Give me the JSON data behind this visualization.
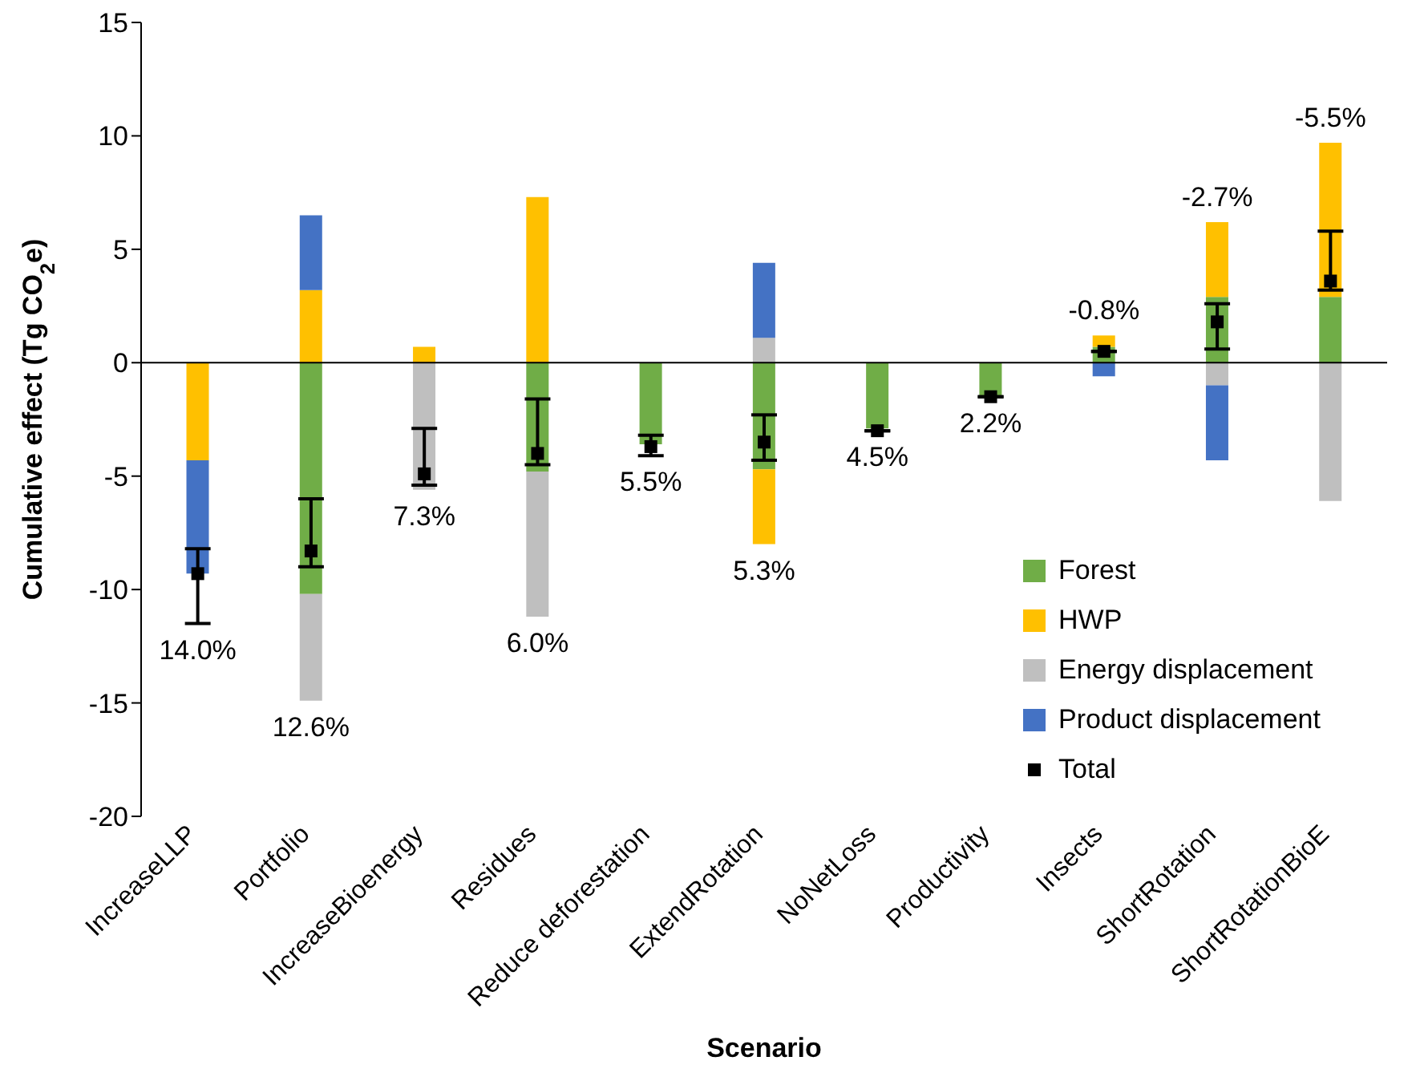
{
  "chart_data": {
    "type": "bar",
    "stacked": true,
    "xlabel": "Scenario",
    "ylabel": "Cumulative effect (Tg CO$_{2}$e)",
    "categories": [
      "IncreaseLLP",
      "Portfolio",
      "IncreaseBioenergy",
      "Residues",
      "Reduce deforestation",
      "ExtendRotation",
      "NoNetLoss",
      "Productivity",
      "Insects",
      "ShortRotation",
      "ShortRotationBioE"
    ],
    "series": [
      {
        "name": "Forest",
        "color": "#70ad47",
        "values": [
          null,
          -10.2,
          null,
          -4.8,
          -3.6,
          -4.7,
          -2.9,
          -1.5,
          0.7,
          2.9,
          2.9
        ]
      },
      {
        "name": "HWP",
        "color": "#ffc000",
        "values": [
          -4.3,
          3.2,
          0.7,
          7.3,
          null,
          -3.3,
          null,
          null,
          0.5,
          3.3,
          6.8
        ]
      },
      {
        "name": "Energy displacement",
        "color": "#bfbfbf",
        "values": [
          null,
          -4.7,
          -5.6,
          -6.4,
          null,
          1.1,
          null,
          null,
          null,
          -1.0,
          -6.1
        ]
      },
      {
        "name": "Product displacement",
        "color": "#4472c4",
        "values": [
          -5.0,
          3.3,
          null,
          null,
          null,
          3.3,
          null,
          null,
          -0.6,
          -3.3,
          null
        ]
      },
      {
        "name": "Total",
        "type": "scatter",
        "color": "#000000",
        "marker": "square",
        "x": [
          "IncreaseLLP",
          "Portfolio",
          "IncreaseBioenergy",
          "Residues",
          "Reduce deforestation",
          "ExtendRotation",
          "NoNetLoss",
          "Productivity",
          "Insects",
          "ShortRotation",
          "ShortRotationBioE"
        ],
        "values": [
          -9.3,
          -8.3,
          -4.9,
          -4.0,
          -3.7,
          -3.5,
          -3.0,
          -1.5,
          0.5,
          1.8,
          3.6
        ],
        "errors": [
          [
            -11.5,
            -8.2
          ],
          [
            -9.0,
            -6.0
          ],
          [
            -5.4,
            -2.9
          ],
          [
            -4.5,
            -1.6
          ],
          [
            -4.1,
            -3.2
          ],
          [
            -4.3,
            -2.3
          ],
          null,
          null,
          null,
          [
            0.6,
            2.6
          ],
          [
            3.2,
            5.8
          ]
        ]
      }
    ],
    "ylim": [
      -20,
      15
    ],
    "yticks": [
      -20,
      -15,
      -10,
      -5,
      0,
      5,
      10,
      15
    ],
    "grid": false,
    "legend": "right",
    "ref_lines": [
      {
        "axis": "y",
        "value": 0,
        "color": "#000000"
      }
    ],
    "annotations": [
      "14.0%",
      "12.6%",
      "7.3%",
      "6.0%",
      "5.5%",
      "5.3%",
      "4.5%",
      "2.2%",
      "-0.8%",
      "-2.7%",
      "-5.5%"
    ]
  }
}
